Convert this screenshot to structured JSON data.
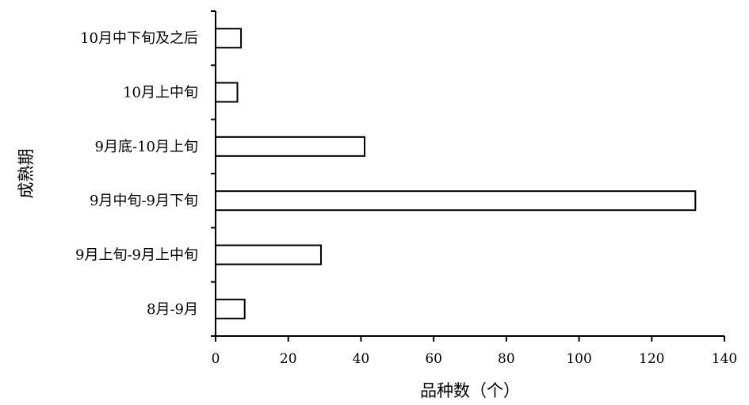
{
  "chart_data": {
    "type": "bar",
    "orientation": "horizontal",
    "categories": [
      "8月-9月",
      "9月上旬-9月上中旬",
      "9月中旬-9月下旬",
      "9月底-10月上旬",
      "10月上中旬",
      "10月中下旬及之后"
    ],
    "values": [
      8,
      29,
      132,
      41,
      6,
      7
    ],
    "xlabel": "品种数（个）",
    "ylabel": "成熟期",
    "xlim": [
      0,
      140
    ],
    "xticks": [
      "0",
      "20",
      "40",
      "60",
      "80",
      "100",
      "120",
      "140"
    ],
    "grid": false,
    "legend": "none",
    "bar_fill": "#ffffff",
    "bar_stroke": "#000000"
  }
}
